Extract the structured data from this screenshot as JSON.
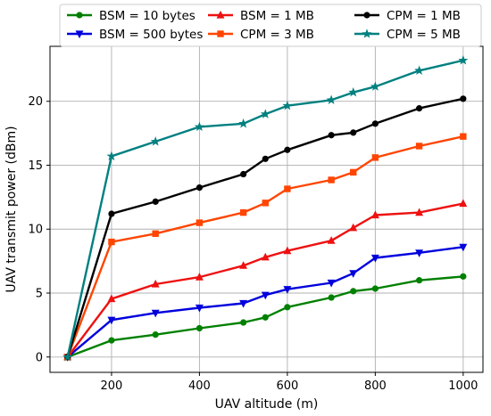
{
  "chart_data": {
    "type": "line",
    "xlabel": "UAV altitude (m)",
    "ylabel": "UAV transmit power (dBm)",
    "xlim": [
      60,
      1045
    ],
    "ylim": [
      -1.2,
      24.3
    ],
    "xticks": [
      200,
      400,
      600,
      800,
      1000
    ],
    "yticks": [
      0,
      5,
      10,
      15,
      20
    ],
    "grid": true,
    "legend_position": "top",
    "series": [
      {
        "name": "BSM = 10 bytes",
        "color": "#008000",
        "marker": "circle",
        "x": [
          100,
          200,
          300,
          400,
          500,
          550,
          600,
          700,
          750,
          800,
          900,
          1000
        ],
        "y": [
          0,
          1.3,
          1.75,
          2.25,
          2.7,
          3.1,
          3.9,
          4.65,
          5.15,
          5.35,
          6.0,
          6.3
        ]
      },
      {
        "name": "BSM = 500 bytes",
        "color": "#0000dd",
        "marker": "triangle-down",
        "x": [
          100,
          200,
          300,
          400,
          500,
          550,
          600,
          700,
          750,
          800,
          900,
          1000
        ],
        "y": [
          0,
          2.9,
          3.45,
          3.85,
          4.2,
          4.85,
          5.3,
          5.8,
          6.55,
          7.75,
          8.15,
          8.6
        ]
      },
      {
        "name": "BSM = 1 MB",
        "color": "#ee1111",
        "marker": "triangle-up",
        "x": [
          100,
          200,
          300,
          400,
          500,
          550,
          600,
          700,
          750,
          800,
          900,
          1000
        ],
        "y": [
          0,
          4.55,
          5.7,
          6.25,
          7.15,
          7.8,
          8.3,
          9.1,
          10.1,
          11.1,
          11.3,
          12.0
        ]
      },
      {
        "name": "CPM = 3 MB",
        "color": "#ff4500",
        "marker": "square",
        "x": [
          100,
          200,
          300,
          400,
          500,
          550,
          600,
          700,
          750,
          800,
          900,
          1000
        ],
        "y": [
          0,
          9.0,
          9.65,
          10.5,
          11.3,
          12.05,
          13.15,
          13.85,
          14.45,
          15.6,
          16.5,
          17.25
        ]
      },
      {
        "name": "CPM = 1 MB",
        "color": "#000000",
        "marker": "circle",
        "x": [
          100,
          200,
          300,
          400,
          500,
          550,
          600,
          700,
          750,
          800,
          900,
          1000
        ],
        "y": [
          0,
          11.2,
          12.15,
          13.25,
          14.3,
          15.5,
          16.2,
          17.35,
          17.55,
          18.25,
          19.45,
          20.2
        ]
      },
      {
        "name": "CPM = 5 MB",
        "color": "#008080",
        "marker": "star",
        "x": [
          100,
          200,
          300,
          400,
          500,
          550,
          600,
          700,
          750,
          800,
          900,
          1000
        ],
        "y": [
          0,
          15.7,
          16.85,
          18.0,
          18.25,
          19.0,
          19.65,
          20.1,
          20.7,
          21.15,
          22.4,
          23.2
        ]
      }
    ]
  }
}
